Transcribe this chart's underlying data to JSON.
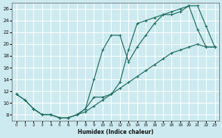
{
  "xlabel": "Humidex (Indice chaleur)",
  "bg_color": "#cceaf0",
  "grid_color": "#ffffff",
  "line_color": "#1e6b5e",
  "xlim": [
    -0.5,
    23.5
  ],
  "ylim": [
    7,
    27
  ],
  "xticks": [
    0,
    1,
    2,
    3,
    4,
    5,
    6,
    7,
    8,
    9,
    10,
    11,
    12,
    13,
    14,
    15,
    16,
    17,
    18,
    19,
    20,
    21,
    22,
    23
  ],
  "yticks": [
    8,
    10,
    12,
    14,
    16,
    18,
    20,
    22,
    24,
    26
  ],
  "line1_x": [
    0,
    1,
    2,
    3,
    4,
    5,
    6,
    7,
    8,
    9,
    10,
    11,
    12,
    13,
    14,
    15,
    16,
    17,
    18,
    19,
    20,
    21,
    22,
    23
  ],
  "line1_y": [
    11.5,
    10.5,
    9.0,
    8.0,
    8.0,
    7.5,
    7.5,
    8.0,
    9.0,
    14.0,
    19.0,
    21.5,
    21.5,
    17.0,
    19.5,
    21.5,
    23.5,
    25.0,
    25.0,
    25.5,
    26.5,
    26.5,
    23.0,
    19.5
  ],
  "line2_x": [
    0,
    1,
    2,
    3,
    4,
    5,
    6,
    7,
    8,
    9,
    10,
    11,
    12,
    13,
    14,
    15,
    16,
    17,
    18,
    19,
    20,
    21,
    22,
    23
  ],
  "line2_y": [
    11.5,
    10.5,
    9.0,
    8.0,
    8.0,
    7.5,
    7.5,
    8.0,
    9.0,
    11.0,
    11.0,
    11.5,
    13.5,
    19.0,
    23.5,
    24.0,
    24.5,
    25.0,
    25.5,
    26.0,
    26.5,
    22.5,
    19.5,
    19.5
  ],
  "line3_x": [
    2,
    3,
    4,
    5,
    6,
    7,
    8,
    9,
    10,
    11,
    12,
    13,
    14,
    15,
    16,
    17,
    18,
    19,
    20,
    21,
    22,
    23
  ],
  "line3_y": [
    9.0,
    8.0,
    8.0,
    7.5,
    7.5,
    8.0,
    8.5,
    9.5,
    10.5,
    11.5,
    12.5,
    13.5,
    14.5,
    15.5,
    16.5,
    17.5,
    18.5,
    19.0,
    19.5,
    20.0,
    19.5,
    19.5
  ]
}
